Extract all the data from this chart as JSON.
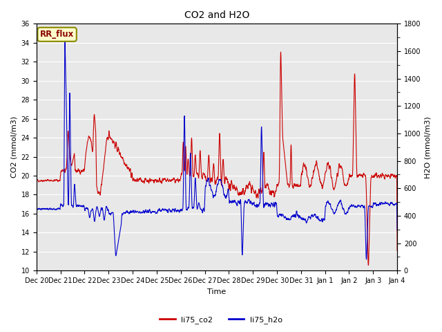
{
  "title": "CO2 and H2O",
  "xlabel": "Time",
  "ylabel_left": "CO2 (mmol/m3)",
  "ylabel_right": "H2O (mmol/m3)",
  "ylim_left": [
    10,
    36
  ],
  "ylim_right": [
    0,
    1800
  ],
  "yticks_left": [
    10,
    12,
    14,
    16,
    18,
    20,
    22,
    24,
    26,
    28,
    30,
    32,
    34,
    36
  ],
  "yticks_right": [
    0,
    200,
    400,
    600,
    800,
    1000,
    1200,
    1400,
    1600,
    1800
  ],
  "xtick_labels": [
    "Dec 20",
    "Dec 21",
    "Dec 22",
    "Dec 23",
    "Dec 24",
    "Dec 25",
    "Dec 26",
    "Dec 27",
    "Dec 28",
    "Dec 29",
    "Dec 30",
    "Dec 31",
    "Jan 1",
    "Jan 2",
    "Jan 3",
    "Jan 4"
  ],
  "legend_labels": [
    "li75_co2",
    "li75_h2o"
  ],
  "legend_colors": [
    "#cc0000",
    "#0000cc"
  ],
  "color_co2": "#cc0000",
  "color_h2o": "#0000cc",
  "label_box_text": "RR_flux",
  "label_box_facecolor": "#ffffcc",
  "label_box_edgecolor": "#888800",
  "label_box_textcolor": "#880000",
  "fig_facecolor": "#ffffff",
  "axes_facecolor": "#e8e8e8",
  "grid_color": "#ffffff",
  "title_fontsize": 10,
  "axis_fontsize": 8,
  "tick_fontsize": 7,
  "legend_fontsize": 8,
  "linewidth": 0.8
}
